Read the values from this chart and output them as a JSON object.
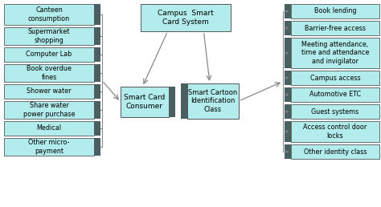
{
  "bg_color": "#ffffff",
  "box_fill": "#b2ecec",
  "box_edge": "#555555",
  "dark_bar": "#4a5f5f",
  "line_color": "#888888",
  "title": "Campus  Smart\nCard System",
  "center_left": "Smart Card\nConsumer",
  "center_right": "Smart Cartoon\nIdentification\nClass",
  "left_items": [
    "Canteen\nconsumption",
    "Supermarket\nshopping",
    "Computer Lab",
    "Book overdue\nfines",
    "Shower water",
    "Share water\npower purchase",
    "Medical",
    "Other micro-\npayment"
  ],
  "left_heights": [
    26,
    22,
    18,
    22,
    18,
    22,
    18,
    22
  ],
  "right_items": [
    "Book lending",
    "Barrier-free access",
    "Meeting attendance,\ntime and attendance\nand invigilator",
    "Campus access",
    "Automotive ETC",
    "Guest systems",
    "Access control door\nlocks",
    "Other identity class"
  ],
  "right_heights": [
    18,
    18,
    38,
    18,
    18,
    18,
    26,
    18
  ]
}
